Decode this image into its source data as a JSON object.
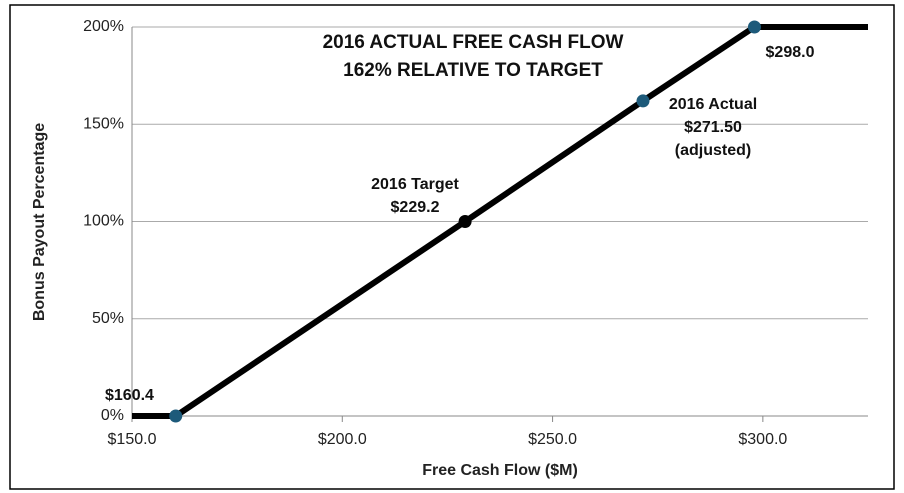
{
  "chart_data": {
    "type": "line",
    "title": [
      "2016 ACTUAL FREE CASH FLOW",
      "162% RELATIVE TO TARGET"
    ],
    "x_label": "Free Cash Flow ($M)",
    "y_label": "Bonus Payout Percentage",
    "x": [
      150,
      160.4,
      229.2,
      271.5,
      298,
      325
    ],
    "series": [
      {
        "color": "#000000",
        "values": [
          0,
          0,
          100,
          162,
          200,
          200
        ],
        "marker_colors": [
          null,
          "#1d5a7a",
          "#000000",
          "#1d5a7a",
          "#1d5a7a",
          null
        ]
      }
    ],
    "annotations": [
      [
        "$160.4"
      ],
      [
        "2016 Target",
        "$229.2"
      ],
      [
        "2016 Actual",
        "$271.50",
        "(adjusted)"
      ],
      [
        "$298.0"
      ]
    ],
    "xlim": [
      150,
      325
    ],
    "xticks": [
      {
        "value": 150,
        "label": "$150.0"
      },
      {
        "value": 200,
        "label": "$200.0"
      },
      {
        "value": 250,
        "label": "$250.0"
      },
      {
        "value": 300,
        "label": "$300.0"
      }
    ],
    "ylim": [
      0,
      200
    ],
    "yticks": [
      {
        "value": 0,
        "label": "0%"
      },
      {
        "value": 50,
        "label": "50%"
      },
      {
        "value": 100,
        "label": "100%"
      },
      {
        "value": 150,
        "label": "150%"
      },
      {
        "value": 200,
        "label": "200%"
      }
    ],
    "grid": true
  }
}
